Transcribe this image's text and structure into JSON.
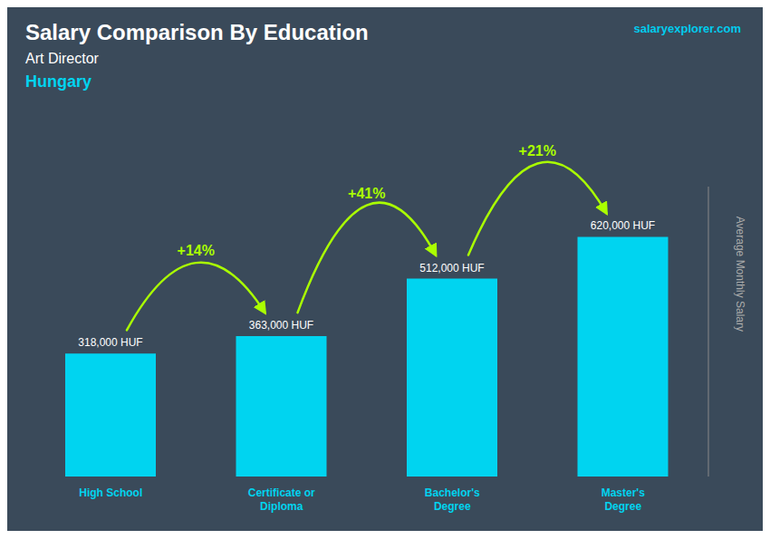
{
  "chart_data": {
    "type": "bar",
    "title": "Salary Comparison By Education",
    "subtitle": [
      "Art Director",
      "Hungary"
    ],
    "categories": [
      "High School",
      "Certificate or\nDiploma",
      "Bachelor's\nDegree",
      "Master's\nDegree"
    ],
    "values": [
      318000,
      363000,
      512000,
      620000
    ],
    "value_labels": [
      "318,000 HUF",
      "363,000 HUF",
      "512,000 HUF",
      "620,000 HUF"
    ],
    "data_labels": true,
    "color": "#00d4f0",
    "ylabel": "Average Monthly Salary",
    "ylim": [
      0,
      750000
    ],
    "tick_labels": "x",
    "grid": false,
    "annotations": [
      {
        "text": "salaryexplorer.com",
        "color": "#00ccee"
      },
      {
        "text": "+14%",
        "between": [
          "High School",
          "Certificate or\nDiploma"
        ],
        "color": "#aaff00"
      },
      {
        "text": "+41%",
        "between": [
          "Certificate or\nDiploma",
          "Bachelor's\nDegree"
        ],
        "color": "#aaff00"
      },
      {
        "text": "+21%",
        "between": [
          "Bachelor's\nDegree",
          "Master's\nDegree"
        ],
        "color": "#aaff00"
      }
    ]
  }
}
